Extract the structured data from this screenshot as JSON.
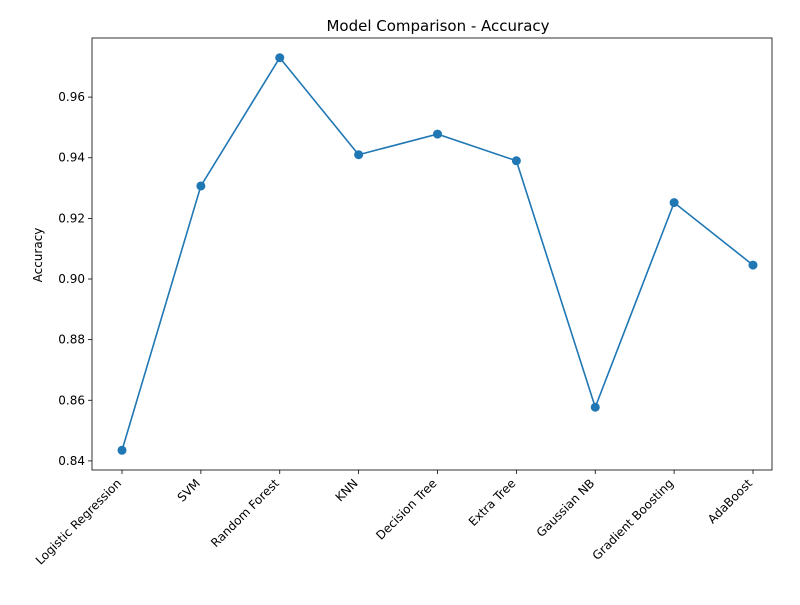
{
  "chart_data": {
    "type": "line",
    "title": "Model Comparison - Accuracy",
    "xlabel": "",
    "ylabel": "Accuracy",
    "categories": [
      "Logistic Regression",
      "SVM",
      "Random Forest",
      "KNN",
      "Decision Tree",
      "Extra Tree",
      "Gaussian NB",
      "Gradient Boosting",
      "AdaBoost"
    ],
    "values": [
      0.8435,
      0.9307,
      0.973,
      0.941,
      0.9478,
      0.939,
      0.8577,
      0.9252,
      0.9046
    ],
    "ylim": [
      0.837,
      0.9795
    ],
    "yticks": [
      0.84,
      0.86,
      0.88,
      0.9,
      0.92,
      0.94,
      0.96
    ],
    "ytick_labels": [
      "0.84",
      "0.86",
      "0.88",
      "0.90",
      "0.92",
      "0.94",
      "0.96"
    ],
    "grid": false,
    "marker": "circle",
    "line_color": "#1f77b4"
  }
}
